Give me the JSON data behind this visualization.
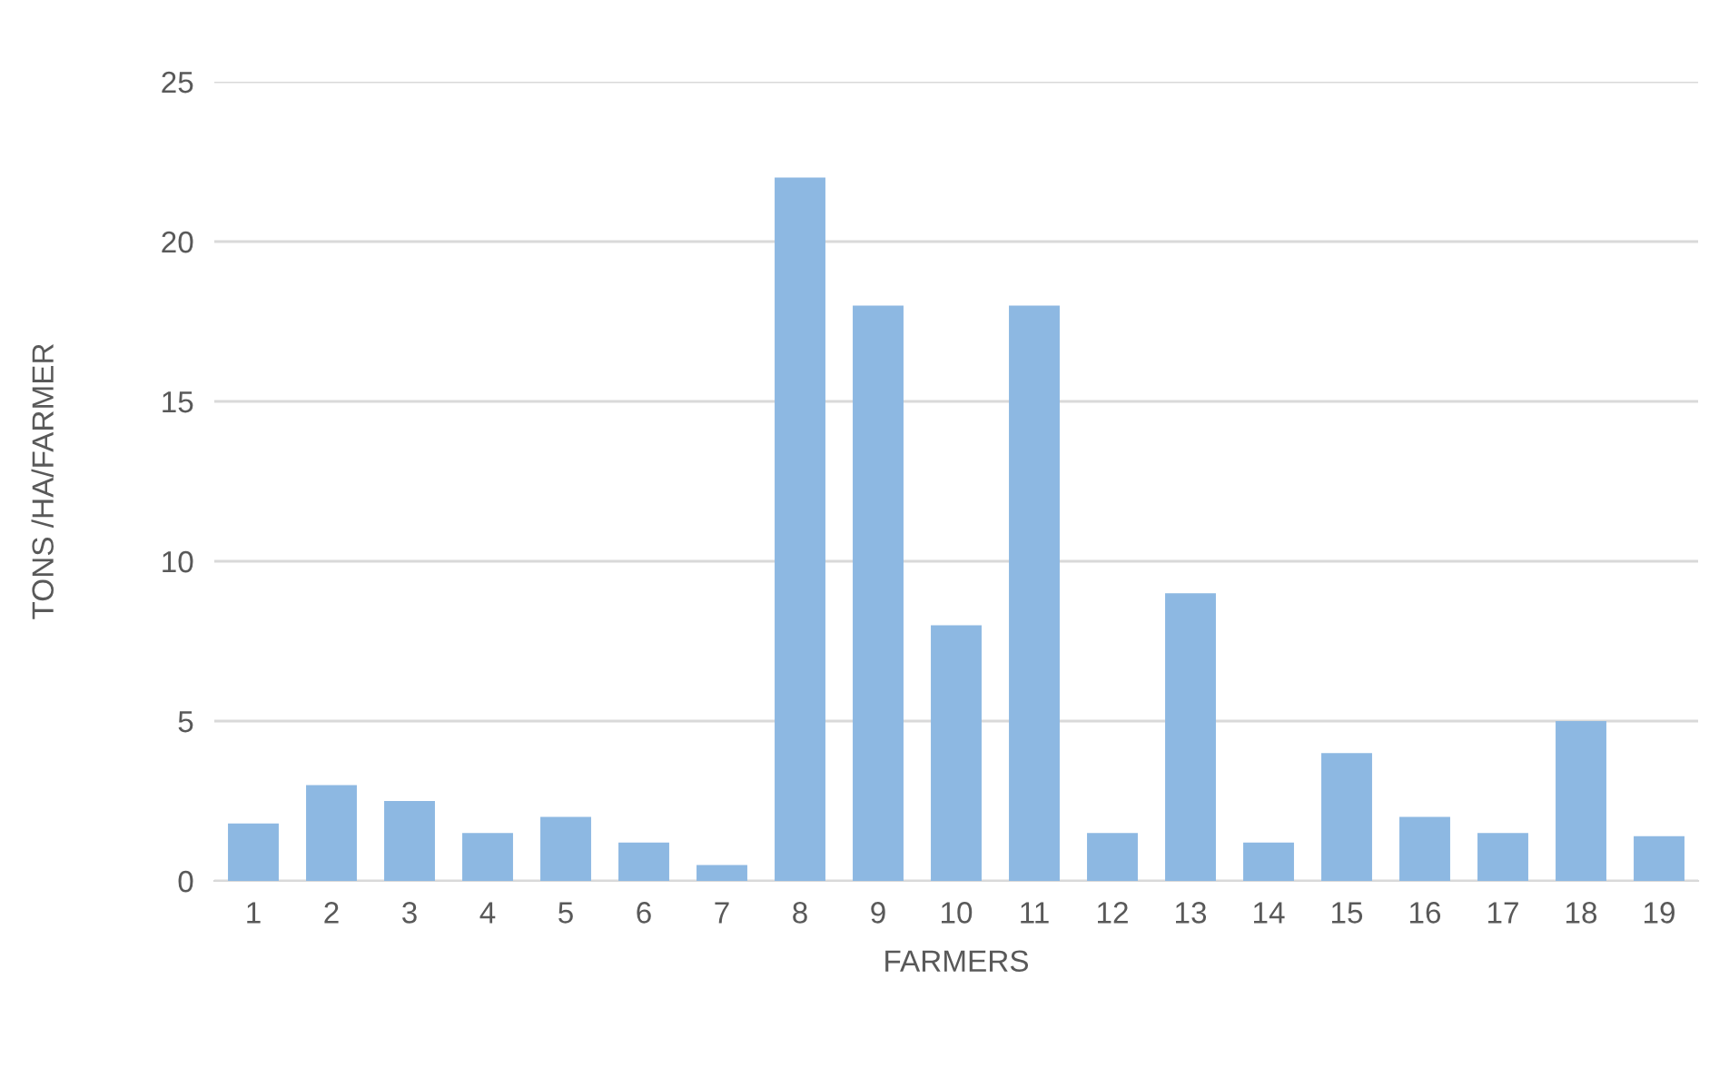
{
  "chart_data": {
    "type": "bar",
    "xlabel": "FARMERS",
    "ylabel": "TONS /HA/FARMER",
    "categories": [
      "1",
      "2",
      "3",
      "4",
      "5",
      "6",
      "7",
      "8",
      "9",
      "10",
      "11",
      "12",
      "13",
      "14",
      "15",
      "16",
      "17",
      "18",
      "19"
    ],
    "values": [
      1.8,
      3.0,
      2.5,
      1.5,
      2.0,
      1.2,
      0.5,
      22,
      18,
      8,
      18,
      1.5,
      9,
      1.2,
      4.0,
      2.0,
      1.5,
      5.0,
      1.4
    ],
    "color": "#8db8e2",
    "ylim": [
      0,
      25
    ],
    "yticks": [
      0,
      5,
      10,
      15,
      20,
      25
    ],
    "grid": "y"
  }
}
